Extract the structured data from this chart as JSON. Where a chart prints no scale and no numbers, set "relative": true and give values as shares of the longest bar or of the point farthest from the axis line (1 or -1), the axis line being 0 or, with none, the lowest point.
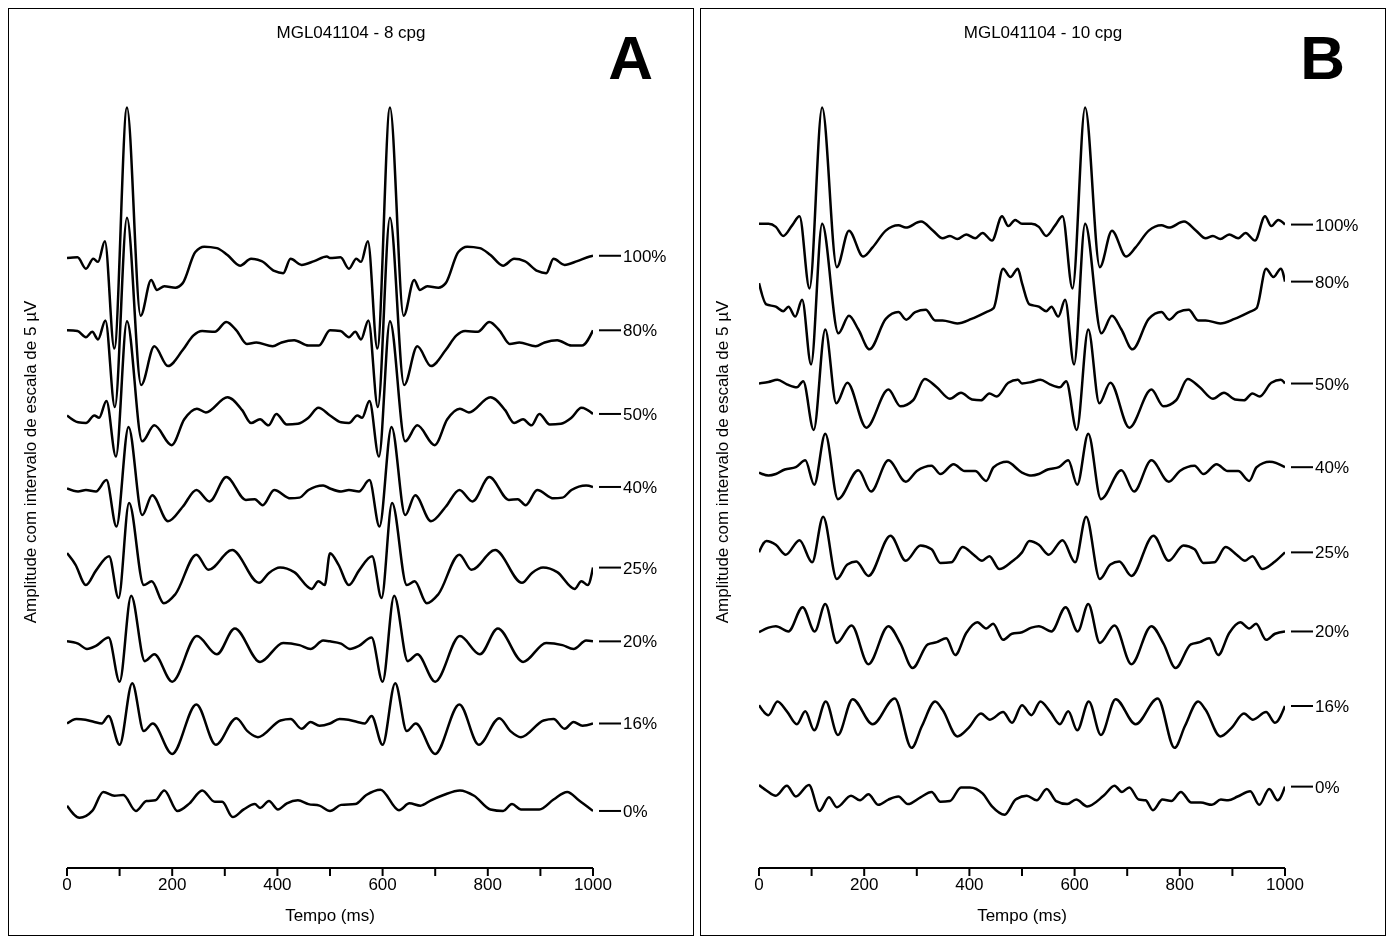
{
  "chart_data": [
    {
      "type": "line",
      "title": "MGL041104 - 8 cpg",
      "xlabel": "Tempo (ms)",
      "ylabel": "Amplitude com intervalo de escala de 5 µV",
      "annotations": [
        "A"
      ],
      "relative": true,
      "xlim": [
        0,
        1000
      ],
      "xticks": [
        0,
        {
          "value": 100,
          "label": null
        },
        200,
        {
          "value": 300,
          "label": null
        },
        400,
        {
          "value": 500,
          "label": null
        },
        600,
        {
          "value": 700,
          "label": null
        },
        800,
        {
          "value": 900,
          "label": null
        },
        1000
      ],
      "grid": false,
      "legend": "right",
      "series": [
        {
          "name": "100%",
          "color": "#000000",
          "x": [
            0,
            20,
            36,
            50,
            59,
            72,
            90,
            114,
            140,
            160,
            171,
            185,
            206,
            220,
            244,
            261,
            285,
            305,
            329,
            350,
            370,
            394,
            411,
            425,
            446,
            470,
            494,
            500,
            520,
            536,
            550,
            559,
            572,
            590,
            614,
            640,
            660,
            671,
            685,
            706,
            720,
            744,
            761,
            785,
            805,
            829,
            850,
            870,
            894,
            911,
            925,
            946,
            970,
            994,
            1000
          ],
          "values": [
            0.802,
            0.803,
            0.788,
            0.801,
            0.797,
            0.824,
            0.683,
            1,
            0.726,
            0.773,
            0.76,
            0.765,
            0.763,
            0.769,
            0.81,
            0.817,
            0.815,
            0.806,
            0.792,
            0.801,
            0.798,
            0.785,
            0.782,
            0.801,
            0.793,
            0.798,
            0.804,
            0.802,
            0.803,
            0.788,
            0.801,
            0.797,
            0.824,
            0.683,
            1,
            0.726,
            0.773,
            0.76,
            0.765,
            0.763,
            0.769,
            0.81,
            0.817,
            0.815,
            0.806,
            0.792,
            0.801,
            0.798,
            0.785,
            0.782,
            0.801,
            0.793,
            0.798,
            0.804,
            0.805
          ]
        },
        {
          "name": "80%",
          "color": "#000000",
          "x": [
            0,
            20,
            36,
            48,
            59,
            73,
            91,
            114,
            141,
            166,
            192,
            220,
            240,
            257,
            281,
            303,
            322,
            342,
            360,
            391,
            408,
            432,
            459,
            479,
            500,
            520,
            536,
            548,
            559,
            573,
            591,
            614,
            641,
            666,
            692,
            720,
            740,
            757,
            781,
            803,
            822,
            842,
            860,
            891,
            908,
            932,
            959,
            979,
            1000
          ],
          "values": [
            0.707,
            0.706,
            0.698,
            0.705,
            0.695,
            0.72,
            0.606,
            0.855,
            0.635,
            0.686,
            0.66,
            0.681,
            0.7,
            0.706,
            0.705,
            0.718,
            0.707,
            0.689,
            0.691,
            0.686,
            0.691,
            0.694,
            0.687,
            0.687,
            0.707,
            0.706,
            0.698,
            0.705,
            0.695,
            0.72,
            0.606,
            0.855,
            0.635,
            0.686,
            0.66,
            0.681,
            0.7,
            0.706,
            0.705,
            0.718,
            0.707,
            0.689,
            0.691,
            0.686,
            0.691,
            0.694,
            0.687,
            0.687,
            0.707
          ]
        },
        {
          "name": "50%",
          "color": "#000000",
          "x": [
            0,
            21,
            36,
            52,
            61,
            75,
            93,
            114,
            143,
            166,
            199,
            223,
            247,
            264,
            305,
            333,
            350,
            367,
            383,
            398,
            418,
            439,
            459,
            478,
            500,
            521,
            536,
            552,
            561,
            575,
            593,
            614,
            643,
            666,
            699,
            723,
            747,
            764,
            805,
            833,
            850,
            867,
            883,
            898,
            918,
            939,
            959,
            978,
            1000
          ],
          "values": [
            0.595,
            0.586,
            0.585,
            0.595,
            0.592,
            0.614,
            0.541,
            0.719,
            0.561,
            0.582,
            0.556,
            0.59,
            0.604,
            0.599,
            0.619,
            0.602,
            0.585,
            0.59,
            0.582,
            0.597,
            0.583,
            0.584,
            0.592,
            0.605,
            0.595,
            0.586,
            0.585,
            0.595,
            0.592,
            0.614,
            0.541,
            0.719,
            0.561,
            0.582,
            0.556,
            0.59,
            0.604,
            0.599,
            0.619,
            0.602,
            0.585,
            0.59,
            0.582,
            0.597,
            0.583,
            0.584,
            0.592,
            0.605,
            0.597
          ]
        },
        {
          "name": "40%",
          "color": "#000000",
          "x": [
            0,
            21,
            36,
            55,
            75,
            94,
            117,
            143,
            162,
            192,
            220,
            246,
            271,
            303,
            340,
            357,
            372,
            394,
            425,
            442,
            459,
            487,
            500,
            521,
            536,
            555,
            575,
            594,
            617,
            643,
            662,
            692,
            720,
            746,
            771,
            803,
            840,
            857,
            872,
            894,
            925,
            942,
            959,
            987,
            1000
          ],
          "values": [
            0.499,
            0.495,
            0.497,
            0.495,
            0.51,
            0.449,
            0.58,
            0.464,
            0.49,
            0.456,
            0.475,
            0.497,
            0.482,
            0.514,
            0.484,
            0.485,
            0.477,
            0.497,
            0.486,
            0.487,
            0.497,
            0.503,
            0.499,
            0.495,
            0.497,
            0.495,
            0.51,
            0.449,
            0.58,
            0.464,
            0.49,
            0.456,
            0.475,
            0.497,
            0.482,
            0.514,
            0.484,
            0.485,
            0.477,
            0.497,
            0.486,
            0.487,
            0.497,
            0.503,
            0.501
          ]
        },
        {
          "name": "25%",
          "color": "#000000",
          "x": [
            0,
            16,
            36,
            55,
            80,
            98,
            118,
            146,
            161,
            184,
            206,
            246,
            269,
            314,
            365,
            384,
            405,
            432,
            465,
            478,
            490,
            500,
            516,
            536,
            555,
            580,
            598,
            618,
            646,
            661,
            684,
            706,
            746,
            769,
            814,
            865,
            884,
            905,
            932,
            965,
            978,
            990,
            1000
          ],
          "values": [
            0.414,
            0.399,
            0.372,
            0.391,
            0.41,
            0.355,
            0.48,
            0.372,
            0.377,
            0.348,
            0.36,
            0.412,
            0.392,
            0.418,
            0.375,
            0.388,
            0.395,
            0.389,
            0.367,
            0.377,
            0.372,
            0.414,
            0.399,
            0.372,
            0.391,
            0.41,
            0.355,
            0.48,
            0.372,
            0.377,
            0.348,
            0.36,
            0.412,
            0.392,
            0.418,
            0.375,
            0.388,
            0.395,
            0.389,
            0.367,
            0.377,
            0.372,
            0.395
          ]
        },
        {
          "name": "20%",
          "color": "#000000",
          "x": [
            0,
            21,
            38,
            55,
            79,
            100,
            122,
            148,
            166,
            200,
            247,
            285,
            319,
            367,
            411,
            442,
            463,
            487,
            500,
            521,
            538,
            555,
            579,
            600,
            622,
            648,
            666,
            700,
            747,
            785,
            819,
            867,
            911,
            942,
            963,
            987,
            1000
          ],
          "values": [
            0.298,
            0.295,
            0.288,
            0.292,
            0.303,
            0.245,
            0.358,
            0.272,
            0.281,
            0.245,
            0.305,
            0.281,
            0.315,
            0.271,
            0.296,
            0.293,
            0.288,
            0.299,
            0.298,
            0.295,
            0.288,
            0.292,
            0.303,
            0.245,
            0.358,
            0.272,
            0.281,
            0.245,
            0.305,
            0.281,
            0.315,
            0.271,
            0.296,
            0.293,
            0.288,
            0.299,
            0.298
          ]
        },
        {
          "name": "16%",
          "color": "#000000",
          "x": [
            0,
            18,
            35,
            52,
            66,
            79,
            100,
            124,
            146,
            163,
            200,
            246,
            283,
            322,
            343,
            363,
            406,
            425,
            446,
            463,
            480,
            500,
            518,
            535,
            552,
            566,
            579,
            600,
            624,
            646,
            663,
            700,
            746,
            783,
            822,
            843,
            863,
            906,
            925,
            946,
            963,
            980,
            1000
          ],
          "values": [
            0.19,
            0.196,
            0.195,
            0.192,
            0.19,
            0.2,
            0.162,
            0.243,
            0.18,
            0.19,
            0.15,
            0.215,
            0.162,
            0.197,
            0.18,
            0.172,
            0.194,
            0.196,
            0.183,
            0.192,
            0.187,
            0.19,
            0.196,
            0.195,
            0.192,
            0.19,
            0.2,
            0.162,
            0.243,
            0.18,
            0.19,
            0.15,
            0.215,
            0.162,
            0.197,
            0.18,
            0.172,
            0.194,
            0.196,
            0.183,
            0.192,
            0.187,
            0.19
          ]
        },
        {
          "name": "0%",
          "color": "#000000",
          "x": [
            0,
            24,
            48,
            69,
            90,
            107,
            131,
            151,
            168,
            185,
            210,
            233,
            257,
            281,
            295,
            315,
            336,
            357,
            367,
            384,
            401,
            418,
            439,
            459,
            480,
            500,
            521,
            548,
            569,
            596,
            631,
            651,
            672,
            692,
            716,
            747,
            774,
            805,
            829,
            846,
            863,
            898,
            925,
            951,
            973,
            1000
          ],
          "values": [
            0.082,
            0.066,
            0.075,
            0.1,
            0.095,
            0.096,
            0.075,
            0.088,
            0.089,
            0.102,
            0.075,
            0.085,
            0.102,
            0.087,
            0.087,
            0.067,
            0.077,
            0.084,
            0.079,
            0.088,
            0.077,
            0.085,
            0.089,
            0.084,
            0.082,
            0.075,
            0.083,
            0.084,
            0.096,
            0.103,
            0.076,
            0.085,
            0.082,
            0.089,
            0.096,
            0.102,
            0.095,
            0.077,
            0.075,
            0.084,
            0.077,
            0.077,
            0.09,
            0.1,
            0.089,
            0.075
          ]
        }
      ]
    },
    {
      "type": "line",
      "title": "MGL041104 - 10 cpg",
      "xlabel": "Tempo (ms)",
      "ylabel": "Amplitude com intervalo de escala de 5 µV",
      "annotations": [
        "B"
      ],
      "relative": true,
      "xlim": [
        0,
        1000
      ],
      "xticks": [
        0,
        {
          "value": 100,
          "label": null
        },
        200,
        {
          "value": 300,
          "label": null
        },
        400,
        {
          "value": 500,
          "label": null
        },
        600,
        {
          "value": 700,
          "label": null
        },
        800,
        {
          "value": 900,
          "label": null
        },
        1000
      ],
      "grid": false,
      "legend": "right",
      "series": [
        {
          "name": "100%",
          "color": "#000000",
          "x": [
            0,
            18,
            32,
            46,
            63,
            77,
            96,
            120,
            148,
            171,
            198,
            216,
            241,
            265,
            279,
            308,
            331,
            349,
            363,
            377,
            394,
            411,
            425,
            443,
            462,
            474,
            487,
            500,
            518,
            532,
            546,
            563,
            577,
            596,
            620,
            648,
            671,
            698,
            716,
            741,
            765,
            779,
            808,
            831,
            849,
            863,
            877,
            894,
            911,
            925,
            943,
            962,
            974,
            987,
            1000
          ],
          "values": [
            0.847,
            0.847,
            0.843,
            0.831,
            0.845,
            0.857,
            0.762,
            1,
            0.79,
            0.838,
            0.804,
            0.816,
            0.838,
            0.845,
            0.842,
            0.85,
            0.838,
            0.828,
            0.831,
            0.827,
            0.833,
            0.828,
            0.835,
            0.825,
            0.857,
            0.844,
            0.852,
            0.847,
            0.847,
            0.843,
            0.831,
            0.845,
            0.857,
            0.762,
            1,
            0.79,
            0.838,
            0.804,
            0.816,
            0.838,
            0.845,
            0.842,
            0.85,
            0.838,
            0.828,
            0.831,
            0.827,
            0.833,
            0.828,
            0.835,
            0.825,
            0.857,
            0.844,
            0.852,
            0.846
          ]
        },
        {
          "name": "80%",
          "color": "#000000",
          "x": [
            0,
            14,
            32,
            46,
            56,
            69,
            82,
            99,
            120,
            151,
            171,
            189,
            210,
            241,
            265,
            280,
            297,
            317,
            335,
            349,
            377,
            404,
            432,
            446,
            464,
            478,
            492,
            500,
            514,
            532,
            546,
            556,
            569,
            582,
            599,
            620,
            651,
            671,
            689,
            710,
            741,
            765,
            780,
            797,
            817,
            835,
            849,
            877,
            904,
            932,
            946,
            964,
            978,
            992,
            1000
          ],
          "values": [
            0.769,
            0.741,
            0.738,
            0.732,
            0.738,
            0.725,
            0.747,
            0.662,
            0.847,
            0.703,
            0.726,
            0.708,
            0.682,
            0.722,
            0.731,
            0.721,
            0.731,
            0.734,
            0.72,
            0.72,
            0.716,
            0.722,
            0.731,
            0.736,
            0.788,
            0.777,
            0.788,
            0.769,
            0.741,
            0.738,
            0.732,
            0.738,
            0.725,
            0.747,
            0.662,
            0.847,
            0.703,
            0.726,
            0.708,
            0.682,
            0.722,
            0.731,
            0.721,
            0.731,
            0.734,
            0.72,
            0.72,
            0.716,
            0.722,
            0.731,
            0.736,
            0.788,
            0.777,
            0.788,
            0.771
          ]
        },
        {
          "name": "50%",
          "color": "#000000",
          "x": [
            0,
            18,
            35,
            53,
            72,
            84,
            104,
            126,
            147,
            168,
            204,
            246,
            269,
            293,
            315,
            338,
            363,
            384,
            405,
            422,
            438,
            452,
            474,
            492,
            500,
            518,
            535,
            553,
            572,
            584,
            604,
            626,
            647,
            668,
            704,
            746,
            769,
            793,
            815,
            838,
            863,
            884,
            905,
            922,
            938,
            952,
            974,
            992,
            1000
          ],
          "values": [
            0.637,
            0.639,
            0.642,
            0.636,
            0.632,
            0.64,
            0.576,
            0.708,
            0.611,
            0.638,
            0.579,
            0.629,
            0.607,
            0.615,
            0.643,
            0.632,
            0.617,
            0.625,
            0.616,
            0.615,
            0.624,
            0.62,
            0.638,
            0.642,
            0.637,
            0.639,
            0.642,
            0.636,
            0.632,
            0.64,
            0.576,
            0.708,
            0.611,
            0.638,
            0.579,
            0.629,
            0.607,
            0.615,
            0.643,
            0.632,
            0.617,
            0.625,
            0.616,
            0.615,
            0.624,
            0.62,
            0.638,
            0.642,
            0.637
          ]
        },
        {
          "name": "40%",
          "color": "#000000",
          "x": [
            0,
            18,
            32,
            49,
            70,
            88,
            105,
            126,
            150,
            189,
            213,
            246,
            279,
            300,
            328,
            345,
            370,
            391,
            411,
            432,
            446,
            471,
            500,
            518,
            532,
            549,
            570,
            588,
            605,
            626,
            650,
            689,
            713,
            746,
            779,
            800,
            828,
            845,
            870,
            891,
            911,
            932,
            946,
            971,
            1000
          ],
          "values": [
            0.52,
            0.516,
            0.518,
            0.524,
            0.527,
            0.536,
            0.504,
            0.571,
            0.485,
            0.523,
            0.495,
            0.536,
            0.508,
            0.522,
            0.529,
            0.518,
            0.531,
            0.522,
            0.522,
            0.509,
            0.527,
            0.534,
            0.52,
            0.516,
            0.518,
            0.524,
            0.527,
            0.536,
            0.504,
            0.571,
            0.485,
            0.523,
            0.495,
            0.536,
            0.508,
            0.522,
            0.529,
            0.518,
            0.531,
            0.522,
            0.522,
            0.509,
            0.527,
            0.534,
            0.527
          ]
        },
        {
          "name": "25%",
          "color": "#000000",
          "x": [
            0,
            14,
            32,
            51,
            77,
            101,
            122,
            148,
            168,
            185,
            208,
            250,
            279,
            307,
            328,
            345,
            366,
            387,
            408,
            424,
            438,
            457,
            481,
            500,
            514,
            532,
            551,
            577,
            601,
            622,
            648,
            668,
            685,
            708,
            750,
            779,
            807,
            828,
            845,
            866,
            887,
            908,
            924,
            938,
            957,
            981,
            1000
          ],
          "values": [
            0.415,
            0.43,
            0.425,
            0.412,
            0.431,
            0.402,
            0.462,
            0.38,
            0.399,
            0.403,
            0.384,
            0.437,
            0.404,
            0.424,
            0.419,
            0.401,
            0.402,
            0.422,
            0.412,
            0.404,
            0.41,
            0.393,
            0.403,
            0.415,
            0.43,
            0.425,
            0.412,
            0.431,
            0.402,
            0.462,
            0.38,
            0.399,
            0.403,
            0.384,
            0.437,
            0.404,
            0.424,
            0.419,
            0.401,
            0.402,
            0.422,
            0.412,
            0.404,
            0.41,
            0.393,
            0.403,
            0.415
          ]
        },
        {
          "name": "20%",
          "color": "#000000",
          "x": [
            0,
            18,
            32,
            56,
            83,
            106,
            126,
            148,
            176,
            208,
            246,
            269,
            292,
            321,
            338,
            356,
            373,
            394,
            415,
            432,
            445,
            464,
            481,
            500,
            518,
            532,
            556,
            583,
            606,
            626,
            648,
            676,
            708,
            746,
            769,
            792,
            821,
            838,
            856,
            873,
            894,
            915,
            932,
            945,
            964,
            981,
            1000
          ],
          "values": [
            0.31,
            0.316,
            0.318,
            0.311,
            0.343,
            0.311,
            0.347,
            0.296,
            0.319,
            0.268,
            0.318,
            0.295,
            0.263,
            0.294,
            0.297,
            0.302,
            0.28,
            0.309,
            0.323,
            0.315,
            0.321,
            0.3,
            0.308,
            0.31,
            0.316,
            0.318,
            0.311,
            0.343,
            0.311,
            0.347,
            0.296,
            0.319,
            0.268,
            0.318,
            0.295,
            0.263,
            0.294,
            0.297,
            0.302,
            0.28,
            0.309,
            0.323,
            0.315,
            0.321,
            0.3,
            0.308,
            0.311
          ]
        },
        {
          "name": "16%",
          "color": "#000000",
          "x": [
            0,
            18,
            35,
            53,
            72,
            88,
            105,
            127,
            150,
            178,
            216,
            258,
            290,
            310,
            335,
            349,
            377,
            398,
            422,
            439,
            464,
            481,
            500,
            518,
            535,
            553,
            572,
            588,
            605,
            627,
            650,
            678,
            716,
            758,
            790,
            810,
            835,
            849,
            877,
            898,
            922,
            939,
            964,
            981,
            1000
          ],
          "values": [
            0.214,
            0.201,
            0.219,
            0.206,
            0.189,
            0.206,
            0.181,
            0.219,
            0.175,
            0.222,
            0.189,
            0.223,
            0.158,
            0.187,
            0.219,
            0.208,
            0.173,
            0.184,
            0.203,
            0.195,
            0.205,
            0.191,
            0.214,
            0.201,
            0.219,
            0.206,
            0.189,
            0.206,
            0.181,
            0.219,
            0.175,
            0.222,
            0.189,
            0.223,
            0.158,
            0.187,
            0.219,
            0.208,
            0.173,
            0.184,
            0.203,
            0.195,
            0.205,
            0.191,
            0.213
          ]
        },
        {
          "name": "0%",
          "color": "#000000",
          "x": [
            0,
            14,
            32,
            53,
            70,
            95,
            115,
            133,
            148,
            175,
            192,
            208,
            227,
            246,
            265,
            283,
            307,
            328,
            345,
            363,
            384,
            401,
            425,
            443,
            467,
            488,
            509,
            528,
            547,
            565,
            586,
            603,
            624,
            655,
            676,
            690,
            704,
            722,
            735,
            749,
            767,
            784,
            802,
            822,
            840,
            861,
            878,
            892,
            910,
            934,
            951,
            970,
            986,
            1000
          ],
          "values": [
            0.109,
            0.102,
            0.095,
            0.108,
            0.094,
            0.109,
            0.075,
            0.093,
            0.08,
            0.095,
            0.089,
            0.097,
            0.083,
            0.09,
            0.094,
            0.084,
            0.093,
            0.1,
            0.087,
            0.088,
            0.106,
            0.106,
            0.098,
            0.081,
            0.07,
            0.09,
            0.095,
            0.089,
            0.104,
            0.088,
            0.084,
            0.09,
            0.081,
            0.095,
            0.108,
            0.1,
            0.106,
            0.09,
            0.089,
            0.076,
            0.09,
            0.088,
            0.1,
            0.086,
            0.086,
            0.083,
            0.09,
            0.089,
            0.094,
            0.101,
            0.083,
            0.104,
            0.089,
            0.107
          ]
        }
      ]
    }
  ]
}
